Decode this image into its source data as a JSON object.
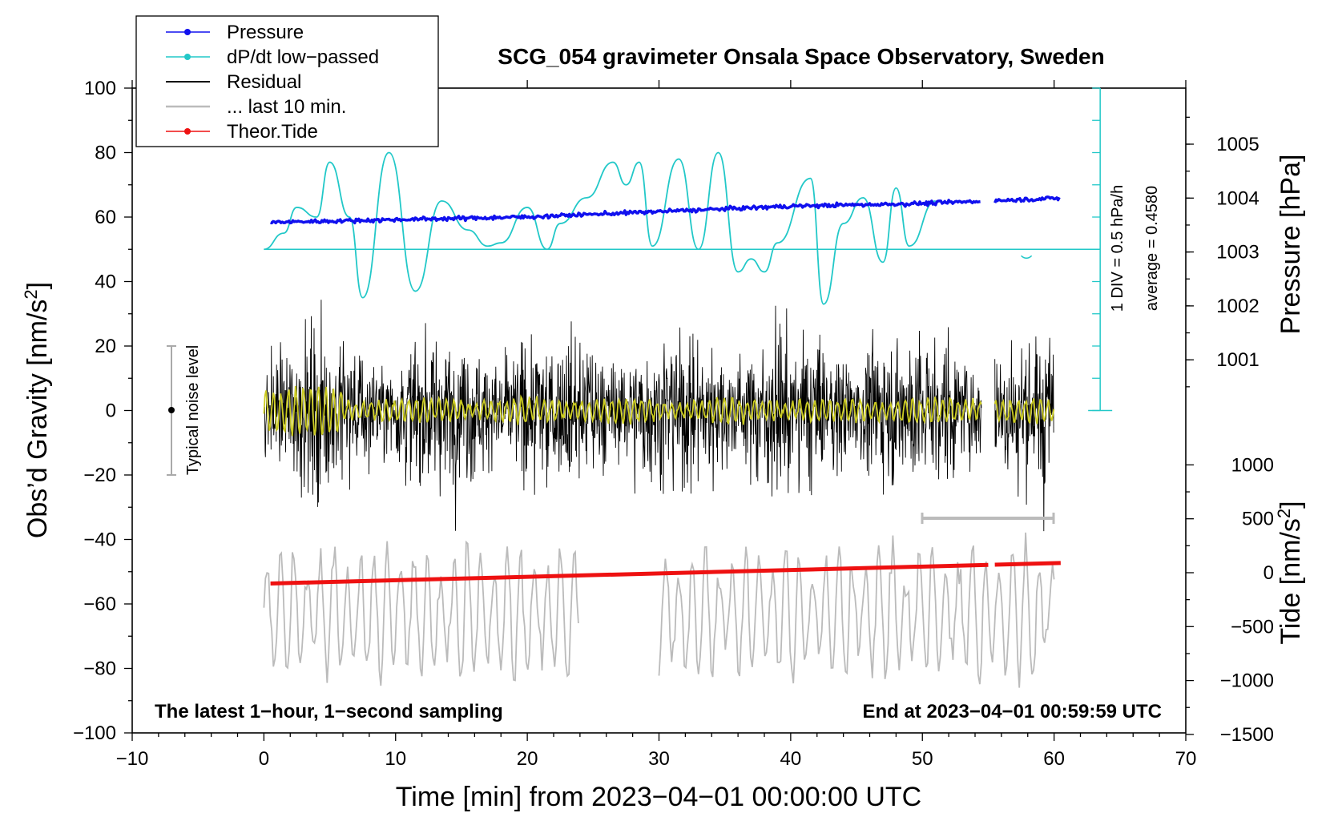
{
  "chart_data": {
    "type": "line",
    "title": "SCG_054 gravimeter Onsala Space Observatory, Sweden",
    "xlabel": "Time [min] from 2023−04−01 00:00:00 UTC",
    "ylabel_left": "Obs’d Gravity [nm/s",
    "ylabel_left_sup": "2",
    "ylabel_left_end": "]",
    "ylabel_right_top": "Pressure [hPa]",
    "ylabel_right_bottom": "Tide [nm/s",
    "ylabel_right_bottom_sup": "2",
    "ylabel_right_bottom_end": "]",
    "xlim": [
      -10,
      70
    ],
    "ylim": [
      -100,
      100
    ],
    "x_ticks": [
      "−10",
      "0",
      "10",
      "20",
      "30",
      "40",
      "50",
      "60",
      "70"
    ],
    "y_ticks": [
      "100",
      "80",
      "60",
      "40",
      "20",
      "0",
      "−20",
      "−40",
      "−60",
      "−80",
      "−100"
    ],
    "pressure_ticks": [
      "1005",
      "1004",
      "1003",
      "1002",
      "1001"
    ],
    "tide_ticks": [
      "1000",
      "500",
      "0",
      "−500",
      "−1000",
      "−1500"
    ],
    "legend": [
      "Pressure",
      "dP/dt low−passed",
      "Residual",
      "... last 10 min.",
      "Theor.Tide"
    ],
    "legend_position": "top-left",
    "noise_label": "Typical noise level",
    "dpdt_scale_label": "1 DIV = 0.5 hPa/h",
    "dpdt_average_label": "average = 0.4580",
    "footer_left": "The latest 1−hour, 1−second sampling",
    "footer_right": "End at 2023−04−01 00:59:59 UTC",
    "series": [
      {
        "name": "Pressure",
        "unit": "hPa",
        "x": [
          0.5,
          10,
          20,
          30,
          40,
          50,
          60.5
        ],
        "values": [
          1003.55,
          1003.6,
          1003.65,
          1003.75,
          1003.85,
          1003.9,
          1004.0
        ]
      },
      {
        "name": "dP/dt low−passed",
        "unit": "nm/s2 plot units",
        "x": [
          0,
          1.5,
          2.5,
          4,
          5,
          6.5,
          7.5,
          9.5,
          11.5,
          13.5,
          15.5,
          17,
          18,
          20,
          21.5,
          22.5,
          24.5,
          26.5,
          27.5,
          28.5,
          29.5,
          31.5,
          33,
          34.5,
          36,
          37,
          38,
          39,
          41.5,
          42.5,
          44,
          45.5,
          47,
          48,
          49,
          51
        ],
        "values": [
          50,
          55,
          63,
          60,
          77,
          60,
          35,
          80,
          37,
          65,
          56,
          51,
          52,
          63,
          50,
          58,
          66,
          77,
          70,
          77,
          51,
          78,
          50,
          80,
          43,
          47,
          43,
          52,
          72,
          33,
          58,
          66,
          46,
          69,
          51,
          65
        ]
      },
      {
        "name": "Residual",
        "unit": "nm/s2",
        "x": [
          0,
          5,
          10,
          15,
          20,
          25,
          30,
          35,
          40,
          45,
          50,
          55,
          60
        ],
        "values": [
          0,
          0,
          0,
          0,
          0,
          0,
          0,
          0,
          0,
          0,
          0,
          0,
          0
        ]
      },
      {
        "name": "... last 10 min.",
        "unit": "nm/s2",
        "x": [
          0,
          5,
          10,
          15,
          20,
          24
        ],
        "values": [
          -60,
          -60,
          -60,
          -60,
          -60,
          -60
        ]
      },
      {
        "name": "Theor.Tide",
        "unit": "nm/s2",
        "x": [
          0.5,
          60.5
        ],
        "values": [
          -100,
          90
        ]
      }
    ]
  },
  "colors": {
    "pressure": "#1010ee",
    "dpdt": "#22c8c8",
    "residual": "#000000",
    "last10": "#bbbbbb",
    "tide": "#ee1111",
    "lowpass": "#cccc22"
  }
}
